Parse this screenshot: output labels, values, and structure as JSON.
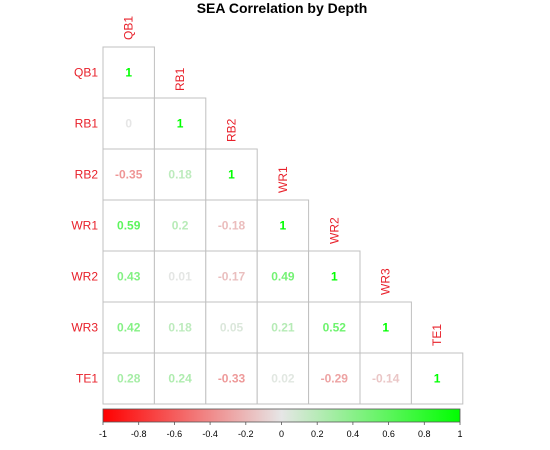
{
  "chart_data": {
    "type": "heatmap",
    "subtype": "lower-triangle-correlation",
    "title": "SEA Correlation by Depth",
    "variables": [
      "QB1",
      "RB1",
      "RB2",
      "WR1",
      "WR2",
      "WR3",
      "TE1"
    ],
    "matrix": [
      [
        1,
        null,
        null,
        null,
        null,
        null,
        null
      ],
      [
        0,
        1,
        null,
        null,
        null,
        null,
        null
      ],
      [
        -0.35,
        0.18,
        1,
        null,
        null,
        null,
        null
      ],
      [
        0.59,
        0.2,
        -0.18,
        1,
        null,
        null,
        null
      ],
      [
        0.43,
        0.01,
        -0.17,
        0.49,
        1,
        null,
        null
      ],
      [
        0.42,
        0.18,
        0.05,
        0.21,
        0.52,
        1,
        null
      ],
      [
        0.28,
        0.24,
        -0.33,
        0.02,
        -0.29,
        -0.14,
        1
      ]
    ],
    "color_range": [
      -1,
      1
    ],
    "colorbar": {
      "ticks": [
        -1,
        -0.8,
        -0.6,
        -0.4,
        -0.2,
        0,
        0.2,
        0.4,
        0.6,
        0.8,
        1
      ],
      "tick_labels": [
        "-1",
        "-0.8",
        "-0.6",
        "-0.4",
        "-0.2",
        "0",
        "0.2",
        "0.4",
        "0.6",
        "0.8",
        "1"
      ],
      "placement": "bottom"
    },
    "colors": {
      "negative": "#ff0000",
      "neutral": "#e6e6e6",
      "positive": "#00ff00",
      "label": "#e8202a",
      "cell_border": "#c0c0c0"
    },
    "legend": "colorbar-bottom",
    "grid": false
  }
}
